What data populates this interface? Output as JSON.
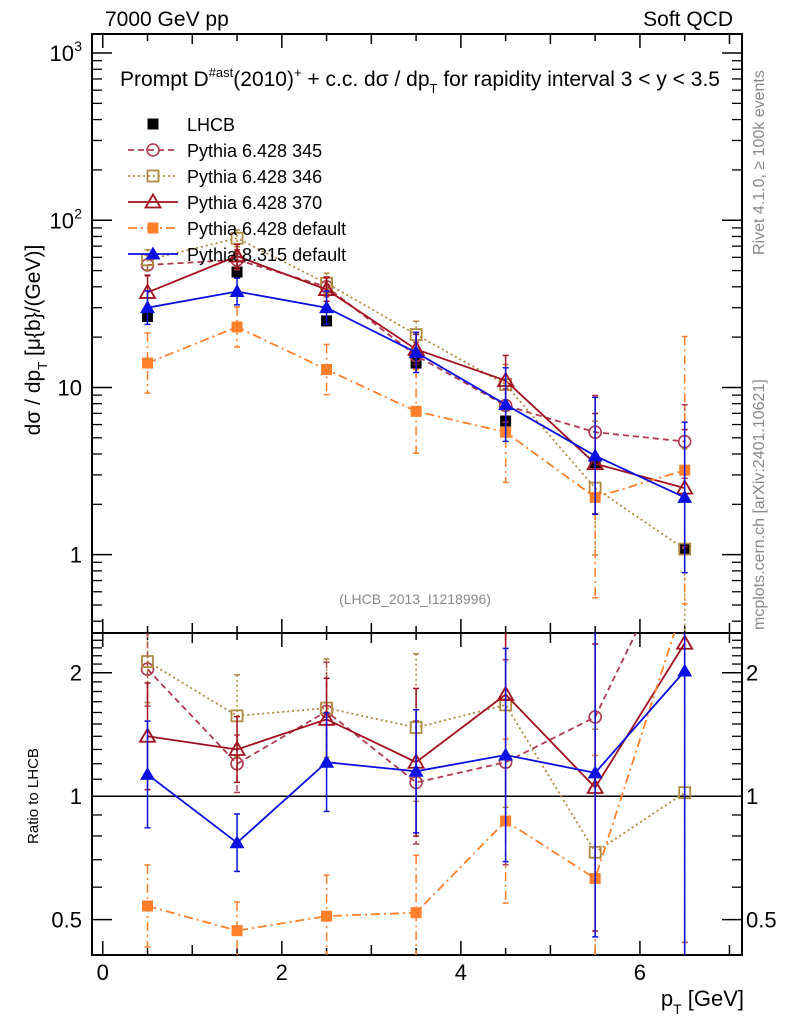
{
  "header": {
    "left": "7000 GeV pp",
    "right": "Soft QCD"
  },
  "side_text": {
    "rivet": "Rivet 4.1.0, ≥ 100k events",
    "mcplots": "mcplots.cern.ch [arXiv:2401.10621]"
  },
  "chart_data": [
    {
      "type": "line",
      "panel": "main",
      "title": "Prompt D^{#ast}(2010)^+ + c.c.  dσ / dp_T for rapidity interval 3 < y < 3.5",
      "title_parts": {
        "pre": "Prompt D",
        "sup1": "#ast",
        "mid": "(2010)",
        "sup2": "+",
        "post": " + c.c.  dσ / dp",
        "sub": "T",
        "tail": " for rapidity interval 3 < y < 3.5"
      },
      "ylabel": "dσ / dp_T [μ{b}/(GeV)]",
      "ylabel_parts": {
        "pre": "dσ / dp",
        "sub": "T",
        "post": " [μ{b}/(GeV)]"
      },
      "yscale": "log",
      "ylim": [
        0.34,
        1300
      ],
      "yticks": [
        {
          "value": 1000,
          "label": "10",
          "sup": "3"
        },
        {
          "value": 100,
          "label": "10",
          "sup": "2"
        },
        {
          "value": 10,
          "label": "10",
          "sup": ""
        },
        {
          "value": 1,
          "label": "1",
          "sup": ""
        }
      ],
      "xlim": [
        -0.12,
        7.14
      ],
      "x": [
        0.5,
        1.5,
        2.5,
        3.5,
        4.5,
        5.5,
        6.5
      ],
      "annotation": "(LHCB_2013_I1218996)",
      "legend_position": "top-left",
      "series": [
        {
          "name": "LHCB",
          "color": "#000000",
          "marker": "filled-square",
          "line": "none",
          "values": [
            26.6,
            49,
            25,
            14,
            6.3,
            3.55,
            1.08
          ],
          "err": [
            0.12,
            0.08,
            0.08,
            0.08,
            0.08,
            0.1,
            0.1
          ]
        },
        {
          "name": "Pythia 6.428 345",
          "color": "#b03a4e",
          "marker": "open-circle",
          "line": "dashed",
          "values": [
            54,
            58,
            40,
            15.5,
            7.8,
            5.4,
            4.75
          ],
          "err": [
            0.06,
            0.06,
            0.06,
            0.08,
            0.1,
            0.22,
            0.22
          ]
        },
        {
          "name": "Pythia 6.428 346",
          "color": "#b08a40",
          "marker": "open-square",
          "line": "dotted",
          "values": [
            58,
            78,
            42,
            20.7,
            10.4,
            2.5,
            1.08
          ],
          "err": [
            0.06,
            0.05,
            0.06,
            0.08,
            0.12,
            0.4,
            0.6
          ]
        },
        {
          "name": "Pythia 6.428 370",
          "color": "#a0101e",
          "marker": "open-triangle",
          "line": "solid",
          "values": [
            37,
            61,
            38.5,
            16.9,
            11.0,
            3.5,
            2.5
          ],
          "err": [
            0.1,
            0.07,
            0.07,
            0.09,
            0.15,
            0.3,
            0.35
          ]
        },
        {
          "name": "Pythia 6.428 default",
          "color": "#ff7f2a",
          "marker": "filled-square",
          "line": "dashdot",
          "values": [
            14,
            23,
            12.8,
            7.2,
            5.4,
            2.2,
            3.2
          ],
          "err": [
            0.18,
            0.12,
            0.15,
            0.25,
            0.3,
            0.6,
            0.8
          ]
        },
        {
          "name": "Pythia 8.315 default",
          "color": "#0a10e0",
          "marker": "filled-triangle",
          "line": "solid",
          "values": [
            30,
            37.5,
            30,
            16.2,
            7.9,
            3.9,
            2.2
          ],
          "err": [
            0.1,
            0.08,
            0.1,
            0.12,
            0.22,
            0.35,
            0.45
          ]
        }
      ]
    },
    {
      "type": "line",
      "panel": "ratio",
      "ylabel": "Ratio to LHCB",
      "xlabel": "p_T [GeV]",
      "xlabel_parts": {
        "pre": "p",
        "sub": "T",
        "post": " [GeV]"
      },
      "yscale": "log",
      "ylim": [
        0.41,
        2.5
      ],
      "yticks": [
        {
          "value": 2,
          "label": "2"
        },
        {
          "value": 1,
          "label": "1"
        },
        {
          "value": 0.5,
          "label": "0.5"
        }
      ],
      "xticks": [
        {
          "value": 0,
          "label": "0"
        },
        {
          "value": 2,
          "label": "2"
        },
        {
          "value": 4,
          "label": "4"
        },
        {
          "value": 6,
          "label": "6"
        }
      ],
      "xlim": [
        -0.12,
        7.14
      ],
      "x": [
        0.5,
        1.5,
        2.5,
        3.5,
        4.5,
        5.5,
        6.5
      ],
      "reference_line": 1,
      "series": [
        {
          "name": "Pythia 6.428 345",
          "color": "#b03a4e",
          "marker": "open-circle",
          "line": "dashed",
          "values": [
            2.04,
            1.2,
            1.61,
            1.08,
            1.21,
            1.56,
            4.4
          ],
          "err": [
            0.09,
            0.07,
            0.12,
            0.15,
            0.25,
            0.4,
            1.0
          ]
        },
        {
          "name": "Pythia 6.428 346",
          "color": "#b08a40",
          "marker": "open-square",
          "line": "dotted",
          "values": [
            2.13,
            1.57,
            1.64,
            1.47,
            1.67,
            0.73,
            1.02
          ],
          "err": [
            0.1,
            0.1,
            0.12,
            0.18,
            0.25,
            0.3,
            0.62
          ]
        },
        {
          "name": "Pythia 6.428 370",
          "color": "#a0101e",
          "marker": "open-triangle",
          "line": "solid",
          "values": [
            1.4,
            1.3,
            1.54,
            1.21,
            1.77,
            1.05,
            2.36
          ],
          "err": [
            0.13,
            0.08,
            0.1,
            0.18,
            0.3,
            0.35,
            0.9
          ]
        },
        {
          "name": "Pythia 6.428 default",
          "color": "#ff7f2a",
          "marker": "filled-square",
          "line": "dashdot",
          "values": [
            0.54,
            0.47,
            0.51,
            0.52,
            0.87,
            0.63,
            3.0
          ],
          "err": [
            0.1,
            0.07,
            0.1,
            0.14,
            0.2,
            0.3,
            1.0
          ]
        },
        {
          "name": "Pythia 8.315 default",
          "color": "#0a10e0",
          "marker": "filled-triangle",
          "line": "solid",
          "values": [
            1.13,
            0.77,
            1.21,
            1.15,
            1.26,
            1.14,
            2.02
          ],
          "err": [
            0.13,
            0.07,
            0.12,
            0.15,
            0.26,
            0.4,
            0.8
          ]
        }
      ]
    }
  ]
}
